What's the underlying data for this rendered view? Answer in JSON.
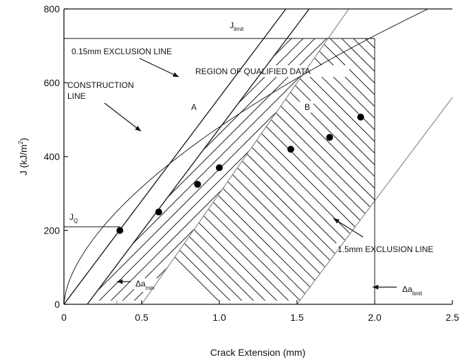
{
  "chart_data": {
    "type": "scatter",
    "title": "",
    "xlabel": "Crack Extension (mm)",
    "ylabel_main": "J (kJ/m",
    "ylabel_exp": "2",
    "ylabel_close": ")",
    "xlim": [
      0,
      2.5
    ],
    "ylim": [
      0,
      800
    ],
    "xticks": [
      0,
      0.5,
      1.0,
      1.5,
      2.0,
      2.5
    ],
    "xtick_labels": [
      "0",
      "0.5",
      "1.0",
      "1.5",
      "2.0",
      "2.5"
    ],
    "yticks": [
      0,
      200,
      400,
      600,
      800
    ],
    "ytick_labels": [
      "0",
      "200",
      "400",
      "600",
      "800"
    ],
    "grid": false,
    "series": [
      {
        "points": [
          {
            "x": 0.36,
            "y": 200
          },
          {
            "x": 0.61,
            "y": 250
          },
          {
            "x": 0.86,
            "y": 325
          },
          {
            "x": 1.0,
            "y": 370
          },
          {
            "x": 1.46,
            "y": 420
          },
          {
            "x": 1.71,
            "y": 452
          },
          {
            "x": 1.91,
            "y": 507
          }
        ]
      }
    ],
    "power_law_fit": {
      "C": 480,
      "n": 0.6,
      "x_end": 2.5
    },
    "lines": {
      "construction_line": {
        "x0": 0,
        "slope": 560
      },
      "exclusion_015": {
        "x0": 0.15,
        "slope": 560
      },
      "exclusion_15": {
        "x0": 1.5,
        "slope": 560
      },
      "j_limit": {
        "y": 720,
        "x_start": 0.0,
        "x_end": 2.0
      },
      "delta_a_limit": {
        "x": 2.0
      },
      "delta_a_min": {
        "x": 0.34
      },
      "j_q": {
        "y": 210,
        "x_end": 0.36
      },
      "a_b_divider": {
        "x0": 0.5,
        "slope": 600
      }
    },
    "annotations": {
      "construction": [
        "CONSTRUCTION",
        "LINE"
      ],
      "exclusion_015": "0.15mm EXCLUSION LINE",
      "region": "REGION OF QUALIFIED DATA",
      "region_a": "A",
      "region_b": "B",
      "exclusion_15": "1.5mm EXCLUSION LINE",
      "j_limit": {
        "main": "J",
        "sub": "limit"
      },
      "j_q": {
        "main": "J",
        "sub": "Q"
      },
      "delta_a_min": {
        "main": "Δa",
        "sub": "min"
      },
      "delta_a_limit": {
        "main": "Δa",
        "sub": "limit"
      }
    },
    "colors": {
      "ink": "#111111",
      "hatch": "#222222",
      "marker": "#000000",
      "background": "#ffffff"
    }
  }
}
